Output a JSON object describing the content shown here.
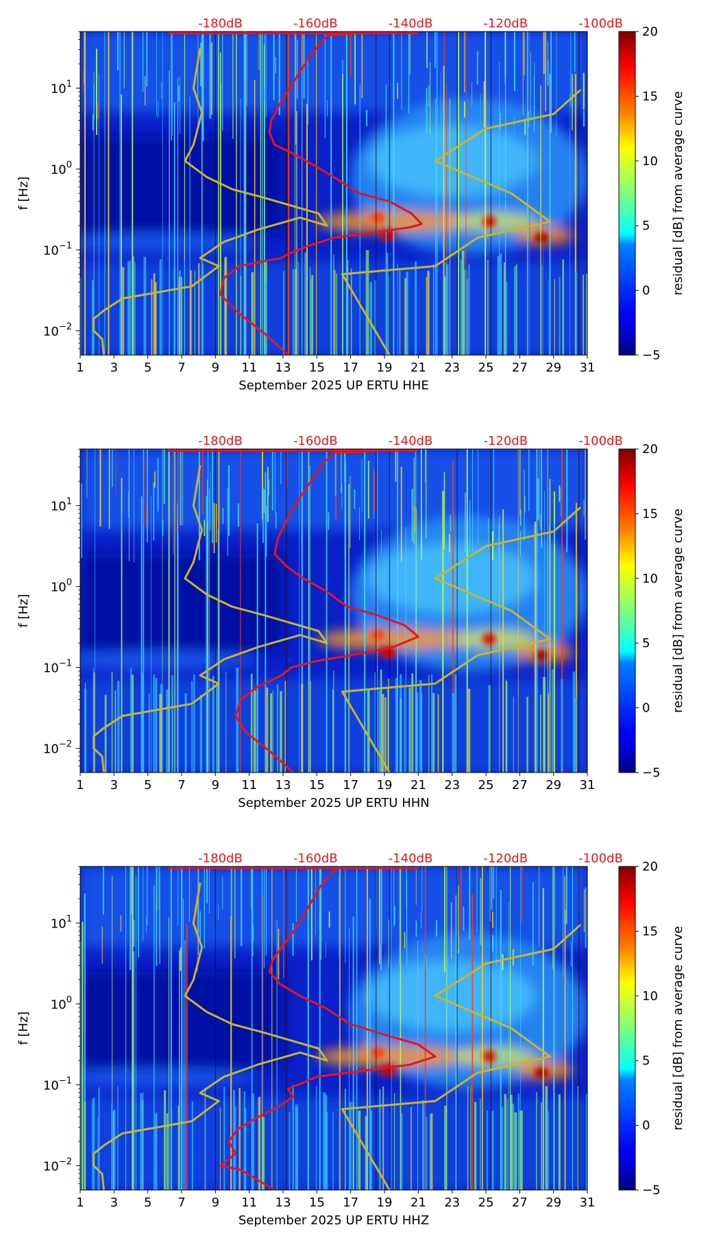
{
  "chart_data": [
    {
      "type": "heatmap",
      "component": "HHE",
      "xlabel": "September 2025 UP ERTU  HHE",
      "ylabel": "f [Hz]",
      "colorbar_label": "residual [dB] from average curve",
      "xlim": [
        1,
        31
      ],
      "ylim_log10": [
        -2.3,
        1.7
      ],
      "x_ticks": [
        "1",
        "3",
        "5",
        "7",
        "9",
        "11",
        "13",
        "15",
        "17",
        "19",
        "21",
        "23",
        "25",
        "27",
        "29",
        "31"
      ],
      "y_ticks": [
        {
          "exp": -2,
          "label": "10"
        },
        {
          "exp": -1,
          "label": "10"
        },
        {
          "exp": 0,
          "label": "10"
        },
        {
          "exp": 1,
          "label": "10"
        }
      ],
      "y_tick_exponents": [
        "−2",
        "−1",
        "0",
        "1"
      ],
      "clim": [
        -5,
        20
      ],
      "colorbar_ticks": [
        "−5",
        "0",
        "5",
        "10",
        "15",
        "20"
      ],
      "db_scale_labels": [
        "-180dB",
        "-160dB",
        "-140dB",
        "-120dB",
        "-100dB"
      ],
      "series": [
        {
          "name": "average PSD curve",
          "color": "#e8141b",
          "points": [
            [
              13.3,
              -2.3
            ],
            [
              12,
              -2.05
            ],
            [
              10.2,
              -1.75
            ],
            [
              9.3,
              -1.55
            ],
            [
              9.5,
              -1.35
            ],
            [
              10.4,
              -1.2
            ],
            [
              12.9,
              -1.1
            ],
            [
              13.3,
              -1.05
            ],
            [
              14.5,
              -0.95
            ],
            [
              16,
              -0.85
            ],
            [
              18.5,
              -0.78
            ],
            [
              20.5,
              -0.72
            ],
            [
              21.2,
              -0.68
            ],
            [
              20.6,
              -0.55
            ],
            [
              19.3,
              -0.4
            ],
            [
              17.5,
              -0.3
            ],
            [
              16,
              -0.1
            ],
            [
              14.8,
              0.05
            ],
            [
              13.5,
              0.2
            ],
            [
              12.5,
              0.3
            ],
            [
              12.2,
              0.45
            ],
            [
              12.3,
              0.6
            ],
            [
              12.8,
              0.8
            ],
            [
              13.4,
              1
            ],
            [
              14,
              1.2
            ],
            [
              14.6,
              1.4
            ],
            [
              15.2,
              1.55
            ],
            [
              15.6,
              1.65
            ],
            [
              17.5,
              1.68
            ],
            [
              20.5,
              1.68
            ]
          ]
        },
        {
          "name": "noise model curve",
          "color": "#c9b52b",
          "points": [
            [
              2.4,
              -2.3
            ],
            [
              2.3,
              -2.1
            ],
            [
              1.8,
              -2.0
            ],
            [
              1.8,
              -1.85
            ],
            [
              2.4,
              -1.75
            ],
            [
              3.5,
              -1.6
            ],
            [
              7.6,
              -1.45
            ],
            [
              9.2,
              -1.2
            ],
            [
              8.1,
              -1.1
            ],
            [
              9.5,
              -0.9
            ],
            [
              11.5,
              -0.75
            ],
            [
              14,
              -0.6
            ],
            [
              15.6,
              -0.7
            ],
            [
              15.1,
              -0.55
            ],
            [
              11.8,
              -0.35
            ],
            [
              10,
              -0.25
            ],
            [
              8.5,
              -0.1
            ],
            [
              7.2,
              0.1
            ],
            [
              7.7,
              0.3
            ],
            [
              8.2,
              0.7
            ],
            [
              7.7,
              1
            ],
            [
              8.1,
              1.5
            ]
          ]
        },
        {
          "name": "noise model curve 2",
          "color": "#c9b52b",
          "points": [
            [
              19.3,
              -2.3
            ],
            [
              16.5,
              -1.3
            ],
            [
              22,
              -1.2
            ],
            [
              24.5,
              -0.85
            ],
            [
              28.8,
              -0.65
            ],
            [
              26.5,
              -0.3
            ],
            [
              22,
              0.1
            ],
            [
              25,
              0.5
            ],
            [
              29,
              0.68
            ],
            [
              30.6,
              0.98
            ]
          ]
        }
      ]
    },
    {
      "type": "heatmap",
      "component": "HHN",
      "xlabel": "September 2025 UP ERTU  HHN",
      "ylabel": "f [Hz]",
      "colorbar_label": "residual [dB] from average curve",
      "xlim": [
        1,
        31
      ],
      "ylim_log10": [
        -2.3,
        1.7
      ],
      "x_ticks": [
        "1",
        "3",
        "5",
        "7",
        "9",
        "11",
        "13",
        "15",
        "17",
        "19",
        "21",
        "23",
        "25",
        "27",
        "29",
        "31"
      ],
      "y_ticks": [
        {
          "exp": -2,
          "label": "10"
        },
        {
          "exp": -1,
          "label": "10"
        },
        {
          "exp": 0,
          "label": "10"
        },
        {
          "exp": 1,
          "label": "10"
        }
      ],
      "y_tick_exponents": [
        "−2",
        "−1",
        "0",
        "1"
      ],
      "clim": [
        -5,
        20
      ],
      "colorbar_ticks": [
        "−5",
        "0",
        "5",
        "10",
        "15",
        "20"
      ],
      "db_scale_labels": [
        "-180dB",
        "-160dB",
        "-140dB",
        "-120dB",
        "-100dB"
      ],
      "series": [
        {
          "name": "average PSD curve",
          "color": "#e8141b",
          "points": [
            [
              13.6,
              -2.3
            ],
            [
              12.3,
              -2.05
            ],
            [
              10.8,
              -1.8
            ],
            [
              10.2,
              -1.6
            ],
            [
              10.5,
              -1.4
            ],
            [
              11.4,
              -1.25
            ],
            [
              12.9,
              -1.1
            ],
            [
              13.5,
              -1.0
            ],
            [
              15,
              -0.92
            ],
            [
              17,
              -0.85
            ],
            [
              19.5,
              -0.75
            ],
            [
              21,
              -0.62
            ],
            [
              20.2,
              -0.48
            ],
            [
              18.5,
              -0.35
            ],
            [
              16.8,
              -0.25
            ],
            [
              15.5,
              -0.05
            ],
            [
              14.2,
              0.1
            ],
            [
              13.2,
              0.25
            ],
            [
              12.5,
              0.4
            ],
            [
              12.7,
              0.6
            ],
            [
              13.3,
              0.85
            ],
            [
              14,
              1.1
            ],
            [
              14.8,
              1.35
            ],
            [
              15.5,
              1.55
            ],
            [
              16,
              1.65
            ],
            [
              19,
              1.68
            ],
            [
              21,
              1.68
            ]
          ]
        },
        {
          "name": "noise model curve",
          "color": "#c9b52b",
          "points": [
            [
              2.4,
              -2.3
            ],
            [
              2.3,
              -2.1
            ],
            [
              1.8,
              -2.0
            ],
            [
              1.8,
              -1.85
            ],
            [
              2.4,
              -1.75
            ],
            [
              3.5,
              -1.6
            ],
            [
              7.6,
              -1.45
            ],
            [
              9.2,
              -1.2
            ],
            [
              8.1,
              -1.1
            ],
            [
              9.5,
              -0.9
            ],
            [
              11.5,
              -0.75
            ],
            [
              14,
              -0.6
            ],
            [
              15.6,
              -0.7
            ],
            [
              15.1,
              -0.55
            ],
            [
              11.8,
              -0.35
            ],
            [
              10,
              -0.25
            ],
            [
              8.5,
              -0.1
            ],
            [
              7.2,
              0.1
            ],
            [
              7.7,
              0.3
            ],
            [
              8.2,
              0.7
            ],
            [
              7.7,
              1
            ],
            [
              8.1,
              1.5
            ]
          ]
        },
        {
          "name": "noise model curve 2",
          "color": "#c9b52b",
          "points": [
            [
              19.3,
              -2.3
            ],
            [
              16.5,
              -1.3
            ],
            [
              22,
              -1.2
            ],
            [
              24.5,
              -0.85
            ],
            [
              28.8,
              -0.65
            ],
            [
              26.5,
              -0.3
            ],
            [
              22,
              0.1
            ],
            [
              25,
              0.5
            ],
            [
              29,
              0.68
            ],
            [
              30.6,
              0.98
            ]
          ]
        }
      ]
    },
    {
      "type": "heatmap",
      "component": "HHZ",
      "xlabel": "September 2025 UP ERTU  HHZ",
      "ylabel": "f [Hz]",
      "colorbar_label": "residual [dB] from average curve",
      "xlim": [
        1,
        31
      ],
      "ylim_log10": [
        -2.3,
        1.7
      ],
      "x_ticks": [
        "1",
        "3",
        "5",
        "7",
        "9",
        "11",
        "13",
        "15",
        "17",
        "19",
        "21",
        "23",
        "25",
        "27",
        "29",
        "31"
      ],
      "y_ticks": [
        {
          "exp": -2,
          "label": "10"
        },
        {
          "exp": -1,
          "label": "10"
        },
        {
          "exp": 0,
          "label": "10"
        },
        {
          "exp": 1,
          "label": "10"
        }
      ],
      "y_tick_exponents": [
        "−2",
        "−1",
        "0",
        "1"
      ],
      "clim": [
        -5,
        20
      ],
      "colorbar_ticks": [
        "−5",
        "0",
        "5",
        "10",
        "15",
        "20"
      ],
      "db_scale_labels": [
        "-180dB",
        "-160dB",
        "-140dB",
        "-120dB",
        "-100dB"
      ],
      "series": [
        {
          "name": "average PSD curve",
          "color": "#e8141b",
          "points": [
            [
              12.5,
              -2.3
            ],
            [
              10.5,
              -2.05
            ],
            [
              9.3,
              -2.0
            ],
            [
              10.2,
              -1.85
            ],
            [
              9.8,
              -1.7
            ],
            [
              10.3,
              -1.55
            ],
            [
              11.5,
              -1.4
            ],
            [
              12.5,
              -1.3
            ],
            [
              13.6,
              -1.15
            ],
            [
              13.3,
              -1.05
            ],
            [
              15,
              -0.9
            ],
            [
              18,
              -0.82
            ],
            [
              20.5,
              -0.75
            ],
            [
              22,
              -0.65
            ],
            [
              21,
              -0.5
            ],
            [
              19,
              -0.38
            ],
            [
              17,
              -0.25
            ],
            [
              15.5,
              -0.05
            ],
            [
              14,
              0.1
            ],
            [
              12.8,
              0.25
            ],
            [
              12.2,
              0.4
            ],
            [
              12.4,
              0.55
            ],
            [
              13.1,
              0.75
            ],
            [
              13.8,
              0.95
            ],
            [
              14.5,
              1.2
            ],
            [
              15.2,
              1.45
            ],
            [
              15.8,
              1.6
            ],
            [
              16.2,
              1.68
            ],
            [
              17.5,
              1.68
            ]
          ]
        },
        {
          "name": "noise model curve",
          "color": "#c9b52b",
          "points": [
            [
              2.4,
              -2.3
            ],
            [
              2.3,
              -2.1
            ],
            [
              1.8,
              -2.0
            ],
            [
              1.8,
              -1.85
            ],
            [
              2.4,
              -1.75
            ],
            [
              3.5,
              -1.6
            ],
            [
              7.6,
              -1.45
            ],
            [
              9.2,
              -1.2
            ],
            [
              8.1,
              -1.1
            ],
            [
              9.5,
              -0.9
            ],
            [
              11.5,
              -0.75
            ],
            [
              14,
              -0.6
            ],
            [
              15.6,
              -0.7
            ],
            [
              15.1,
              -0.55
            ],
            [
              11.8,
              -0.35
            ],
            [
              10,
              -0.25
            ],
            [
              8.5,
              -0.1
            ],
            [
              7.2,
              0.1
            ],
            [
              7.7,
              0.3
            ],
            [
              8.2,
              0.7
            ],
            [
              7.7,
              1
            ],
            [
              8.1,
              1.5
            ]
          ]
        },
        {
          "name": "noise model curve 2",
          "color": "#c9b52b",
          "points": [
            [
              19.3,
              -2.3
            ],
            [
              16.5,
              -1.3
            ],
            [
              22,
              -1.2
            ],
            [
              24.5,
              -0.85
            ],
            [
              28.8,
              -0.65
            ],
            [
              26.5,
              -0.3
            ],
            [
              22,
              0.1
            ],
            [
              25,
              0.5
            ],
            [
              29,
              0.68
            ],
            [
              30.6,
              0.98
            ]
          ]
        }
      ]
    }
  ]
}
